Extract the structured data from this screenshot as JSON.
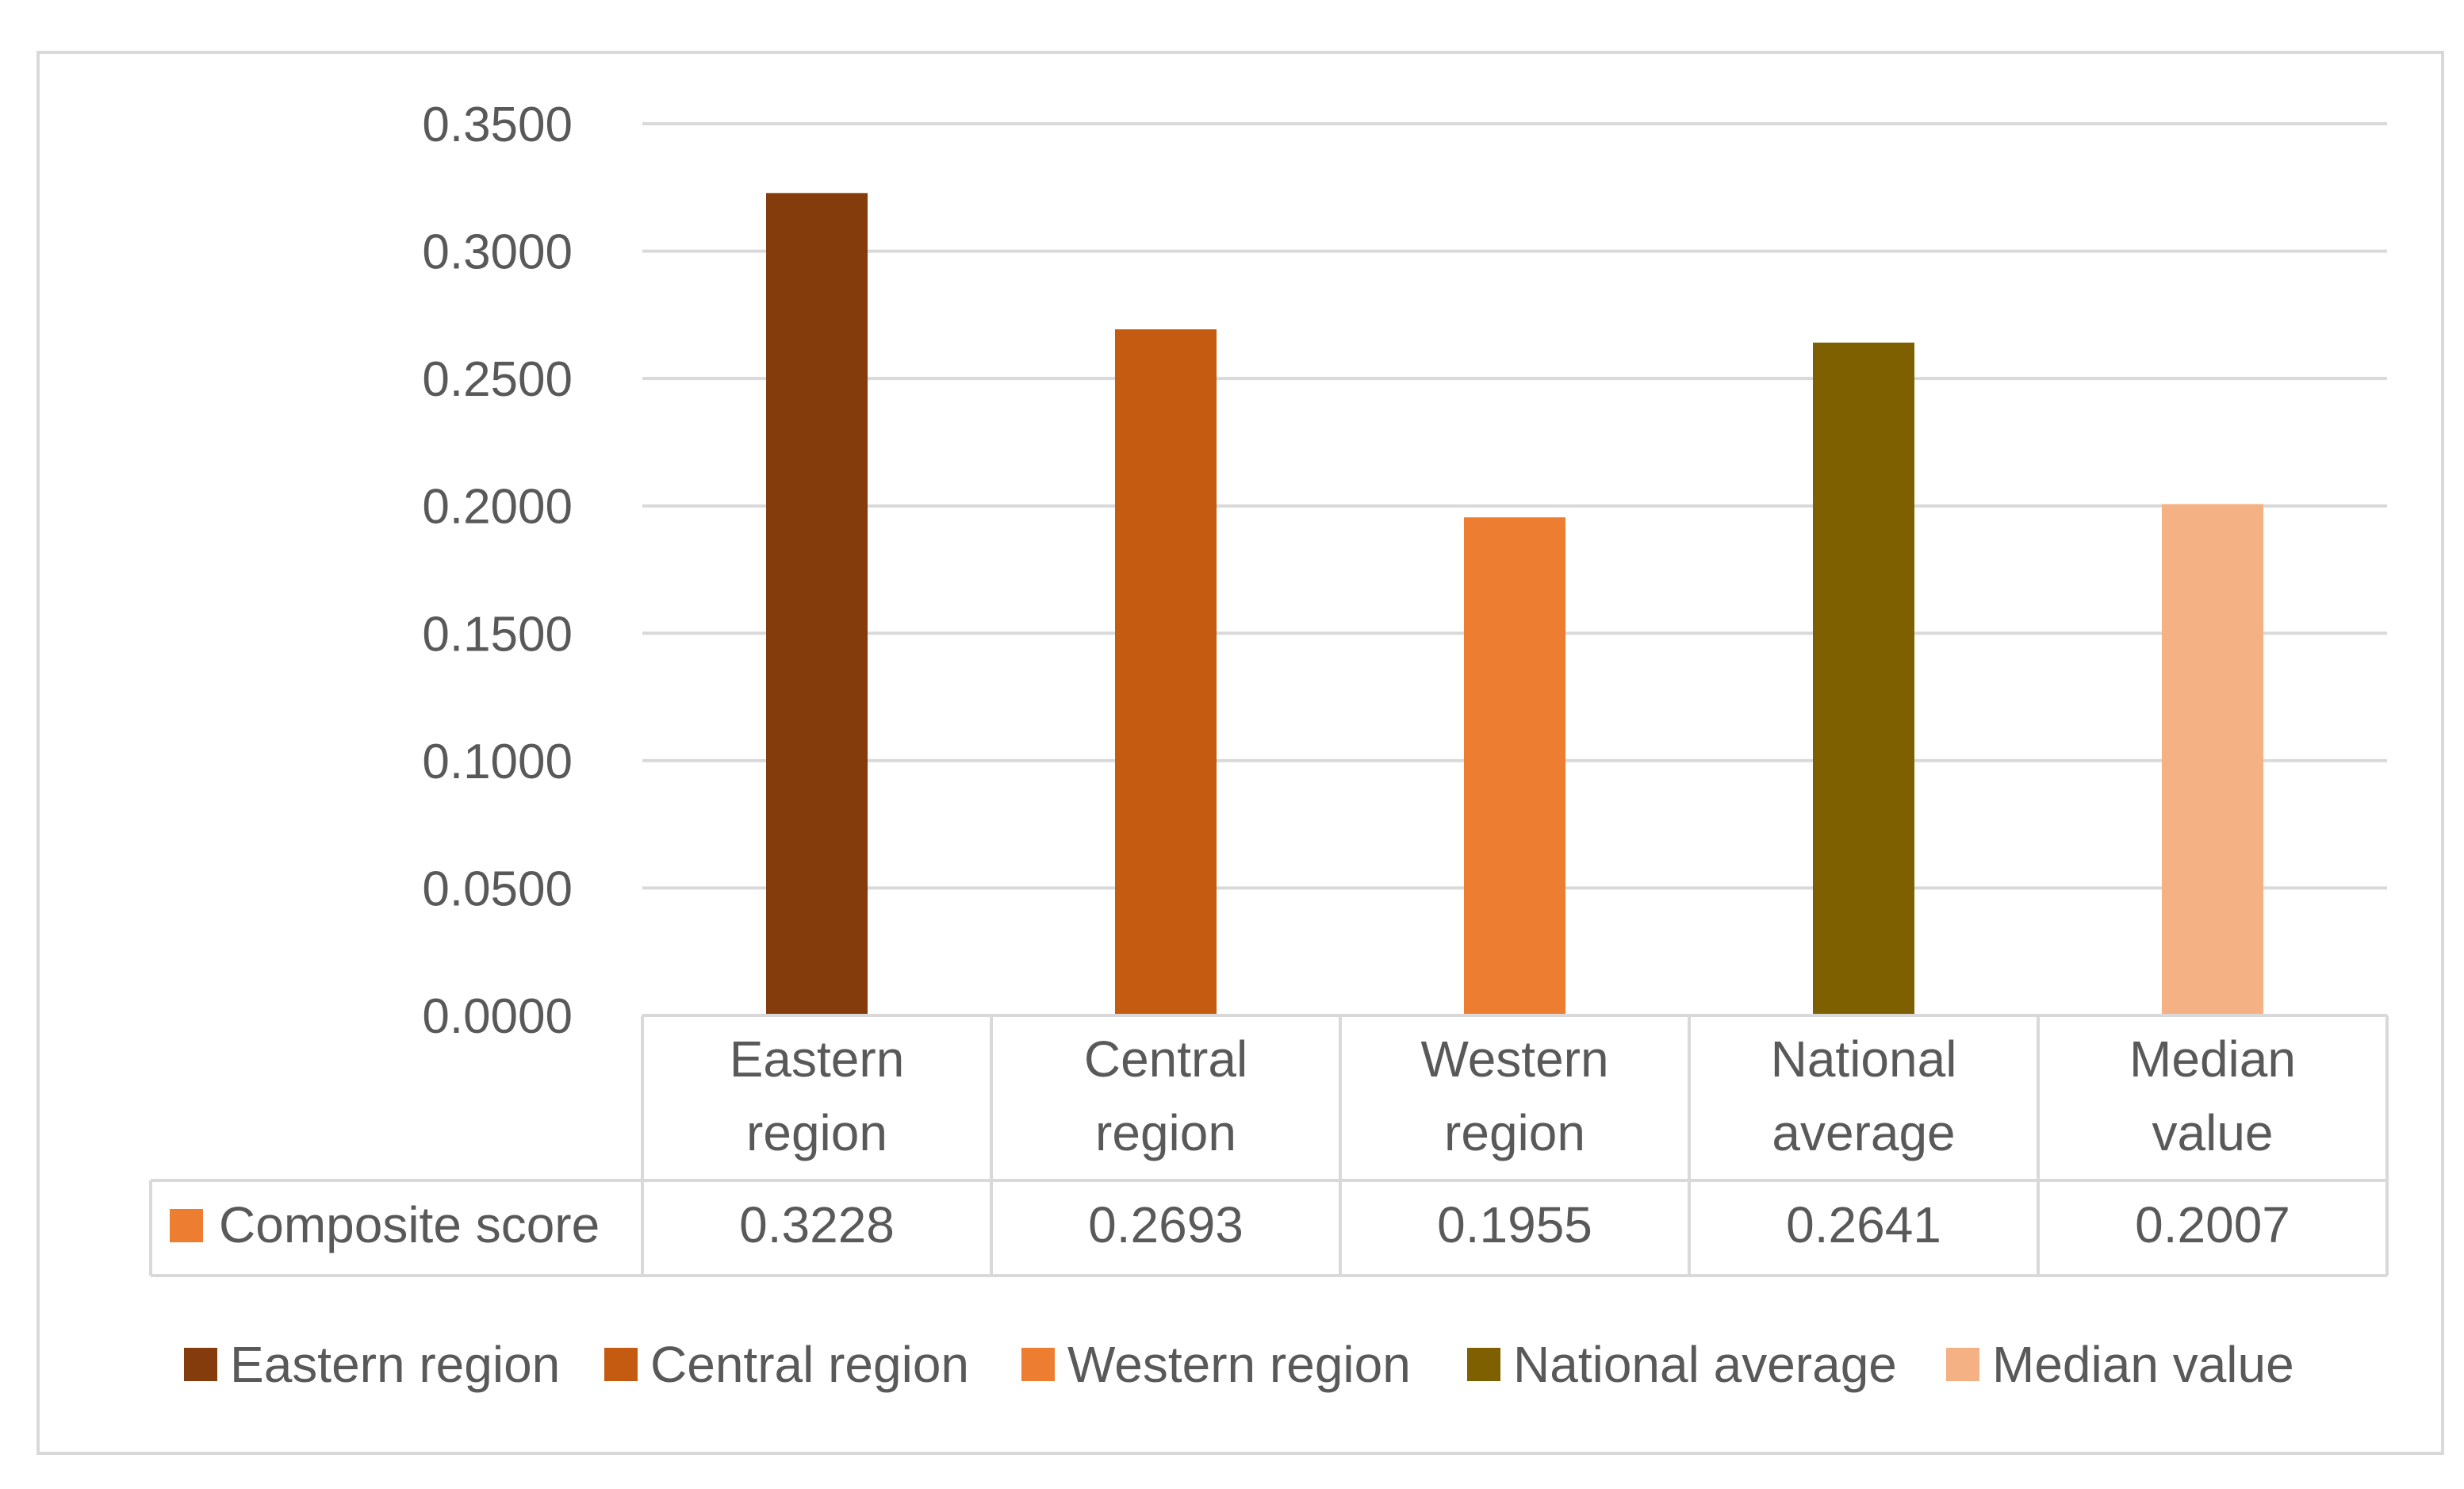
{
  "chart_data": {
    "type": "bar",
    "title": "",
    "xlabel": "",
    "ylabel": "",
    "categories": [
      [
        "Eastern",
        "region"
      ],
      [
        "Central",
        "region"
      ],
      [
        "Western",
        "region"
      ],
      [
        "National",
        "average"
      ],
      [
        "Median",
        "value"
      ]
    ],
    "series": [
      {
        "name": "Composite score",
        "values": [
          0.3228,
          0.2693,
          0.1955,
          0.2641,
          0.2007
        ]
      }
    ],
    "value_labels": [
      "0.3228",
      "0.2693",
      "0.1955",
      "0.2641",
      "0.2007"
    ],
    "ylim": [
      0,
      0.35
    ],
    "y_ticks": [
      0,
      0.05,
      0.1,
      0.15,
      0.2,
      0.25,
      0.3,
      0.35
    ],
    "y_tick_labels": [
      "0.0000",
      "0.0500",
      "0.1000",
      "0.1500",
      "0.2000",
      "0.2500",
      "0.3000",
      "0.3500"
    ],
    "grid": true,
    "data_table": true,
    "legend": {
      "position": "bottom",
      "items": [
        "Eastern region",
        "Central region",
        "Western region",
        "National average",
        "Median value"
      ]
    },
    "colors": [
      "#843C0C",
      "#C55A11",
      "#ED7D31",
      "#7F6000",
      "#F4B183"
    ],
    "table_series_color": "#ED7D31",
    "gridline_color": "#d9d9d9",
    "text_color": "#595959"
  }
}
